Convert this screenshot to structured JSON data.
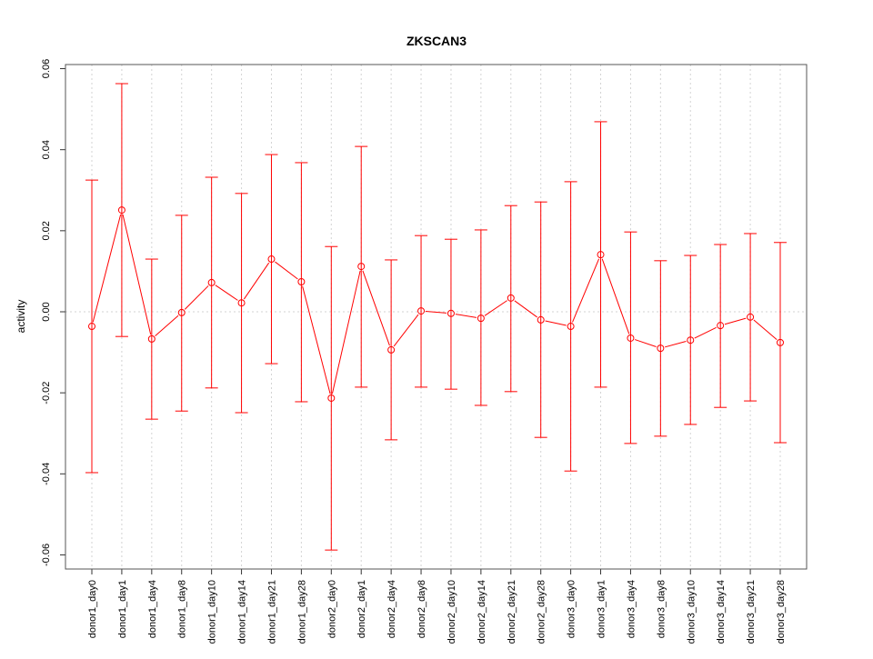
{
  "chart_data": {
    "type": "line",
    "title": "ZKSCAN3",
    "xlabel": "",
    "ylabel": "activity",
    "ylim": [
      -0.063,
      0.061
    ],
    "yticks": [
      -0.06,
      -0.04,
      -0.02,
      0.0,
      0.02,
      0.04,
      0.06
    ],
    "ytick_labels": [
      "-0.06",
      "-0.04",
      "-0.02",
      "0.00",
      "0.02",
      "0.04",
      "0.06"
    ],
    "grid": "vertical dotted at categories, horizontal dotted at 0",
    "color": "#ff0000",
    "categories": [
      "donor1_day0",
      "donor1_day1",
      "donor1_day4",
      "donor1_day8",
      "donor1_day10",
      "donor1_day14",
      "donor1_day21",
      "donor1_day28",
      "donor2_day0",
      "donor2_day1",
      "donor2_day4",
      "donor2_day8",
      "donor2_day10",
      "donor2_day14",
      "donor2_day21",
      "donor2_day28",
      "donor3_day0",
      "donor3_day1",
      "donor3_day4",
      "donor3_day8",
      "donor3_day10",
      "donor3_day14",
      "donor3_day21",
      "donor3_day28"
    ],
    "values": [
      -0.0036,
      0.0251,
      -0.0067,
      -0.0002,
      0.0072,
      0.0022,
      0.013,
      0.0074,
      -0.0213,
      0.0112,
      -0.0094,
      0.0002,
      -0.0004,
      -0.0016,
      0.0034,
      -0.002,
      -0.0036,
      0.0141,
      -0.0065,
      -0.009,
      -0.007,
      -0.0034,
      -0.0013,
      -0.0076
    ],
    "upper": [
      0.0325,
      0.0563,
      0.013,
      0.0238,
      0.0332,
      0.0292,
      0.0388,
      0.0368,
      0.0161,
      0.0408,
      0.0128,
      0.0188,
      0.0179,
      0.0202,
      0.0262,
      0.0271,
      0.0321,
      0.0469,
      0.0197,
      0.0126,
      0.0139,
      0.0166,
      0.0193,
      0.0171
    ],
    "lower": [
      -0.0397,
      -0.0061,
      -0.0265,
      -0.0245,
      -0.0188,
      -0.0249,
      -0.0128,
      -0.0222,
      -0.0588,
      -0.0186,
      -0.0316,
      -0.0186,
      -0.0191,
      -0.0231,
      -0.0197,
      -0.031,
      -0.0393,
      -0.0186,
      -0.0325,
      -0.0307,
      -0.0278,
      -0.0236,
      -0.022,
      -0.0323
    ]
  }
}
